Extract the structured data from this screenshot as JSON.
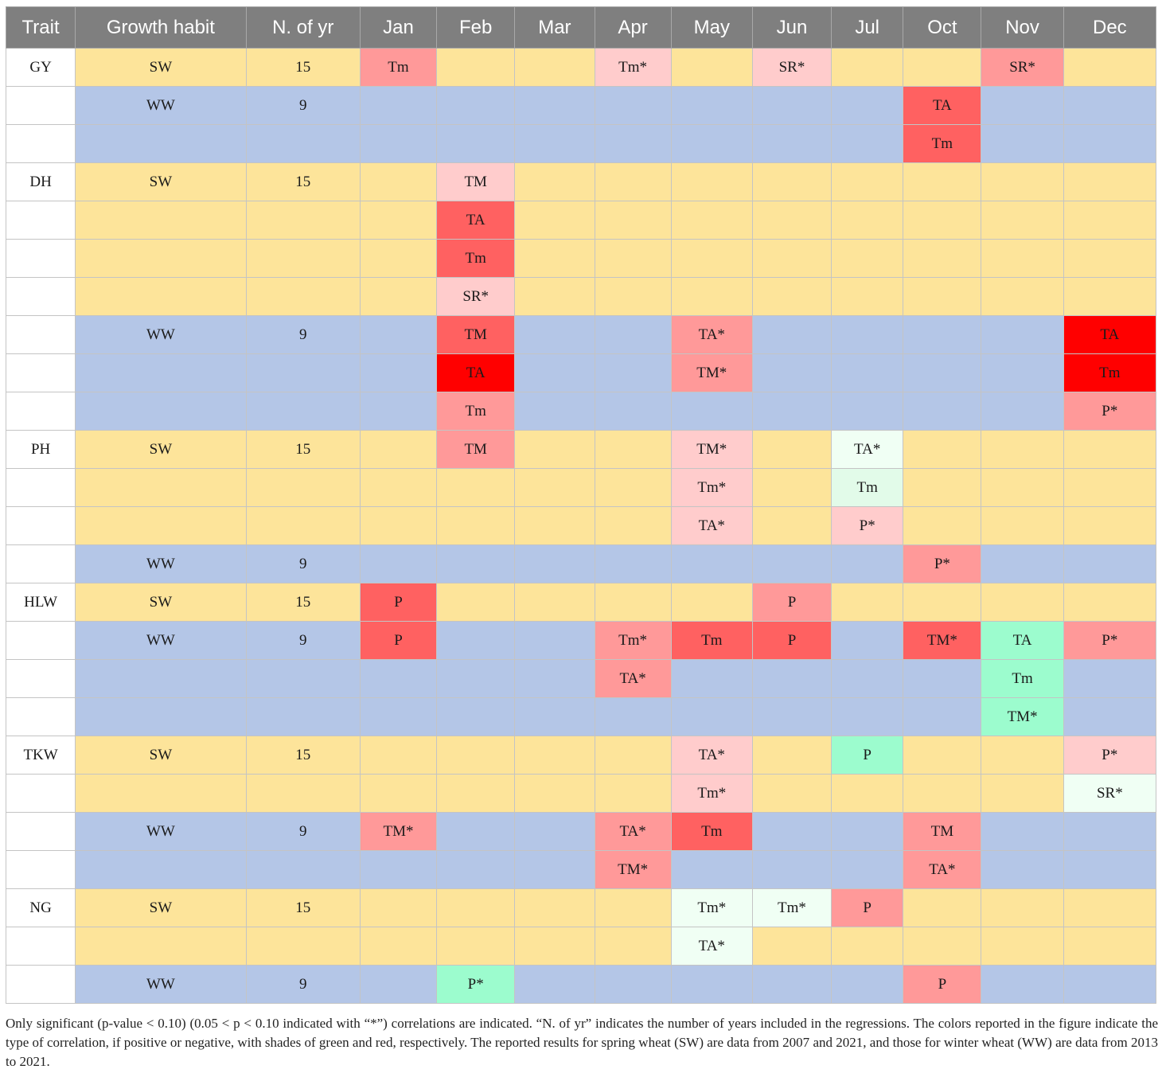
{
  "colors": {
    "header_bg": "#7f7f7f",
    "sw_bg": "#fde49a",
    "ww_bg": "#b4c6e7",
    "red_light": "#ffcccc",
    "red_mid": "#ff9999",
    "red_strong": "#ff6161",
    "red_max": "#ff0000",
    "green_light": "#f0fff4",
    "green_mid": "#e2fbe9",
    "green_strong": "#9cfcce"
  },
  "headers": [
    "Trait",
    "Growth habit",
    "N. of yr",
    "Jan",
    "Feb",
    "Mar",
    "Apr",
    "May",
    "Jun",
    "Jul",
    "Oct",
    "Nov",
    "Dec"
  ],
  "rows": [
    {
      "trait": "GY",
      "habit": "SW",
      "n": "15",
      "cells": [
        [
          "Tm",
          "red_mid"
        ],
        [
          "",
          ""
        ],
        [
          "",
          ""
        ],
        [
          "Tm*",
          "red_light"
        ],
        [
          "",
          ""
        ],
        [
          "SR*",
          "red_light"
        ],
        [
          "",
          ""
        ],
        [
          "",
          ""
        ],
        [
          "SR*",
          "red_mid"
        ],
        [
          "",
          ""
        ]
      ]
    },
    {
      "trait": "",
      "habit": "WW",
      "n": "9",
      "cells": [
        [
          "",
          ""
        ],
        [
          "",
          ""
        ],
        [
          "",
          ""
        ],
        [
          "",
          ""
        ],
        [
          "",
          ""
        ],
        [
          "",
          ""
        ],
        [
          "",
          ""
        ],
        [
          "TA",
          "red_strong"
        ],
        [
          "",
          ""
        ],
        [
          "",
          ""
        ]
      ]
    },
    {
      "trait": "",
      "habit": "",
      "n": "",
      "cells": [
        [
          "",
          ""
        ],
        [
          "",
          ""
        ],
        [
          "",
          ""
        ],
        [
          "",
          ""
        ],
        [
          "",
          ""
        ],
        [
          "",
          ""
        ],
        [
          "",
          ""
        ],
        [
          "Tm",
          "red_strong"
        ],
        [
          "",
          ""
        ],
        [
          "",
          ""
        ]
      ]
    },
    {
      "trait": "DH",
      "habit": "SW",
      "n": "15",
      "cells": [
        [
          "",
          ""
        ],
        [
          "TM",
          "red_light"
        ],
        [
          "",
          ""
        ],
        [
          "",
          ""
        ],
        [
          "",
          ""
        ],
        [
          "",
          ""
        ],
        [
          "",
          ""
        ],
        [
          "",
          ""
        ],
        [
          "",
          ""
        ],
        [
          "",
          ""
        ]
      ]
    },
    {
      "trait": "",
      "habit": "",
      "n": "",
      "cells": [
        [
          "",
          ""
        ],
        [
          "TA",
          "red_strong"
        ],
        [
          "",
          ""
        ],
        [
          "",
          ""
        ],
        [
          "",
          ""
        ],
        [
          "",
          ""
        ],
        [
          "",
          ""
        ],
        [
          "",
          ""
        ],
        [
          "",
          ""
        ],
        [
          "",
          ""
        ]
      ]
    },
    {
      "trait": "",
      "habit": "",
      "n": "",
      "cells": [
        [
          "",
          ""
        ],
        [
          "Tm",
          "red_strong"
        ],
        [
          "",
          ""
        ],
        [
          "",
          ""
        ],
        [
          "",
          ""
        ],
        [
          "",
          ""
        ],
        [
          "",
          ""
        ],
        [
          "",
          ""
        ],
        [
          "",
          ""
        ],
        [
          "",
          ""
        ]
      ]
    },
    {
      "trait": "",
      "habit": "",
      "n": "",
      "cells": [
        [
          "",
          ""
        ],
        [
          "SR*",
          "red_light"
        ],
        [
          "",
          ""
        ],
        [
          "",
          ""
        ],
        [
          "",
          ""
        ],
        [
          "",
          ""
        ],
        [
          "",
          ""
        ],
        [
          "",
          ""
        ],
        [
          "",
          ""
        ],
        [
          "",
          ""
        ]
      ]
    },
    {
      "trait": "",
      "habit": "WW",
      "n": "9",
      "cells": [
        [
          "",
          ""
        ],
        [
          "TM",
          "red_strong"
        ],
        [
          "",
          ""
        ],
        [
          "",
          ""
        ],
        [
          "TA*",
          "red_mid"
        ],
        [
          "",
          ""
        ],
        [
          "",
          ""
        ],
        [
          "",
          ""
        ],
        [
          "",
          ""
        ],
        [
          "TA",
          "red_max"
        ]
      ]
    },
    {
      "trait": "",
      "habit": "",
      "n": "",
      "cells": [
        [
          "",
          ""
        ],
        [
          "TA",
          "red_max"
        ],
        [
          "",
          ""
        ],
        [
          "",
          ""
        ],
        [
          "TM*",
          "red_mid"
        ],
        [
          "",
          ""
        ],
        [
          "",
          ""
        ],
        [
          "",
          ""
        ],
        [
          "",
          ""
        ],
        [
          "Tm",
          "red_max"
        ]
      ]
    },
    {
      "trait": "",
      "habit": "",
      "n": "",
      "cells": [
        [
          "",
          ""
        ],
        [
          "Tm",
          "red_mid"
        ],
        [
          "",
          ""
        ],
        [
          "",
          ""
        ],
        [
          "",
          ""
        ],
        [
          "",
          ""
        ],
        [
          "",
          ""
        ],
        [
          "",
          ""
        ],
        [
          "",
          ""
        ],
        [
          "P*",
          "red_mid"
        ]
      ]
    },
    {
      "trait": "PH",
      "habit": "SW",
      "n": "15",
      "cells": [
        [
          "",
          ""
        ],
        [
          "TM",
          "red_mid"
        ],
        [
          "",
          ""
        ],
        [
          "",
          ""
        ],
        [
          "TM*",
          "red_light"
        ],
        [
          "",
          ""
        ],
        [
          "TA*",
          "green_light"
        ],
        [
          "",
          ""
        ],
        [
          "",
          ""
        ],
        [
          "",
          ""
        ]
      ]
    },
    {
      "trait": "",
      "habit": "",
      "n": "",
      "cells": [
        [
          "",
          ""
        ],
        [
          "",
          ""
        ],
        [
          "",
          ""
        ],
        [
          "",
          ""
        ],
        [
          "Tm*",
          "red_light"
        ],
        [
          "",
          ""
        ],
        [
          "Tm",
          "green_mid"
        ],
        [
          "",
          ""
        ],
        [
          "",
          ""
        ],
        [
          "",
          ""
        ]
      ]
    },
    {
      "trait": "",
      "habit": "",
      "n": "",
      "cells": [
        [
          "",
          ""
        ],
        [
          "",
          ""
        ],
        [
          "",
          ""
        ],
        [
          "",
          ""
        ],
        [
          "TA*",
          "red_light"
        ],
        [
          "",
          ""
        ],
        [
          "P*",
          "red_light"
        ],
        [
          "",
          ""
        ],
        [
          "",
          ""
        ],
        [
          "",
          ""
        ]
      ]
    },
    {
      "trait": "",
      "habit": "WW",
      "n": "9",
      "cells": [
        [
          "",
          ""
        ],
        [
          "",
          ""
        ],
        [
          "",
          ""
        ],
        [
          "",
          ""
        ],
        [
          "",
          ""
        ],
        [
          "",
          ""
        ],
        [
          "",
          ""
        ],
        [
          "P*",
          "red_mid"
        ],
        [
          "",
          ""
        ],
        [
          "",
          ""
        ]
      ]
    },
    {
      "trait": "HLW",
      "habit": "SW",
      "n": "15",
      "cells": [
        [
          "P",
          "red_strong"
        ],
        [
          "",
          ""
        ],
        [
          "",
          ""
        ],
        [
          "",
          ""
        ],
        [
          "",
          ""
        ],
        [
          "P",
          "red_mid"
        ],
        [
          "",
          ""
        ],
        [
          "",
          ""
        ],
        [
          "",
          ""
        ],
        [
          "",
          ""
        ]
      ]
    },
    {
      "trait": "",
      "habit": "WW",
      "n": "9",
      "cells": [
        [
          "P",
          "red_strong"
        ],
        [
          "",
          ""
        ],
        [
          "",
          ""
        ],
        [
          "Tm*",
          "red_mid"
        ],
        [
          "Tm",
          "red_strong"
        ],
        [
          "P",
          "red_strong"
        ],
        [
          "",
          ""
        ],
        [
          "TM*",
          "red_strong"
        ],
        [
          "TA",
          "green_strong"
        ],
        [
          "P*",
          "red_mid"
        ]
      ]
    },
    {
      "trait": "",
      "habit": "",
      "n": "",
      "cells": [
        [
          "",
          ""
        ],
        [
          "",
          ""
        ],
        [
          "",
          ""
        ],
        [
          "TA*",
          "red_mid"
        ],
        [
          "",
          ""
        ],
        [
          "",
          ""
        ],
        [
          "",
          ""
        ],
        [
          "",
          ""
        ],
        [
          "Tm",
          "green_strong"
        ],
        [
          "",
          ""
        ]
      ]
    },
    {
      "trait": "",
      "habit": "",
      "n": "",
      "cells": [
        [
          "",
          ""
        ],
        [
          "",
          ""
        ],
        [
          "",
          ""
        ],
        [
          "",
          ""
        ],
        [
          "",
          ""
        ],
        [
          "",
          ""
        ],
        [
          "",
          ""
        ],
        [
          "",
          ""
        ],
        [
          "TM*",
          "green_strong"
        ],
        [
          "",
          ""
        ]
      ]
    },
    {
      "trait": "TKW",
      "habit": "SW",
      "n": "15",
      "cells": [
        [
          "",
          ""
        ],
        [
          "",
          ""
        ],
        [
          "",
          ""
        ],
        [
          "",
          ""
        ],
        [
          "TA*",
          "red_light"
        ],
        [
          "",
          ""
        ],
        [
          "P",
          "green_strong"
        ],
        [
          "",
          ""
        ],
        [
          "",
          ""
        ],
        [
          "P*",
          "red_light"
        ]
      ]
    },
    {
      "trait": "",
      "habit": "",
      "n": "",
      "cells": [
        [
          "",
          ""
        ],
        [
          "",
          ""
        ],
        [
          "",
          ""
        ],
        [
          "",
          ""
        ],
        [
          "Tm*",
          "red_light"
        ],
        [
          "",
          ""
        ],
        [
          "",
          ""
        ],
        [
          "",
          ""
        ],
        [
          "",
          ""
        ],
        [
          "SR*",
          "green_light"
        ]
      ]
    },
    {
      "trait": "",
      "habit": "WW",
      "n": "9",
      "cells": [
        [
          "TM*",
          "red_mid"
        ],
        [
          "",
          ""
        ],
        [
          "",
          ""
        ],
        [
          "TA*",
          "red_mid"
        ],
        [
          "Tm",
          "red_strong"
        ],
        [
          "",
          ""
        ],
        [
          "",
          ""
        ],
        [
          "TM",
          "red_mid"
        ],
        [
          "",
          ""
        ],
        [
          "",
          ""
        ]
      ]
    },
    {
      "trait": "",
      "habit": "",
      "n": "",
      "cells": [
        [
          "",
          ""
        ],
        [
          "",
          ""
        ],
        [
          "",
          ""
        ],
        [
          "TM*",
          "red_mid"
        ],
        [
          "",
          ""
        ],
        [
          "",
          ""
        ],
        [
          "",
          ""
        ],
        [
          "TA*",
          "red_mid"
        ],
        [
          "",
          ""
        ],
        [
          "",
          ""
        ]
      ]
    },
    {
      "trait": "NG",
      "habit": "SW",
      "n": "15",
      "cells": [
        [
          "",
          ""
        ],
        [
          "",
          ""
        ],
        [
          "",
          ""
        ],
        [
          "",
          ""
        ],
        [
          "Tm*",
          "green_light"
        ],
        [
          "Tm*",
          "green_light"
        ],
        [
          "P",
          "red_mid"
        ],
        [
          "",
          ""
        ],
        [
          "",
          ""
        ],
        [
          "",
          ""
        ]
      ]
    },
    {
      "trait": "",
      "habit": "",
      "n": "",
      "cells": [
        [
          "",
          ""
        ],
        [
          "",
          ""
        ],
        [
          "",
          ""
        ],
        [
          "",
          ""
        ],
        [
          "TA*",
          "green_light"
        ],
        [
          "",
          ""
        ],
        [
          "",
          ""
        ],
        [
          "",
          ""
        ],
        [
          "",
          ""
        ],
        [
          "",
          ""
        ]
      ]
    },
    {
      "trait": "",
      "habit": "WW",
      "n": "9",
      "cells": [
        [
          "",
          ""
        ],
        [
          "P*",
          "green_strong"
        ],
        [
          "",
          ""
        ],
        [
          "",
          ""
        ],
        [
          "",
          ""
        ],
        [
          "",
          ""
        ],
        [
          "",
          ""
        ],
        [
          "P",
          "red_mid"
        ],
        [
          "",
          ""
        ],
        [
          "",
          ""
        ]
      ]
    }
  ],
  "row_groups": [
    "sw",
    "ww",
    "ww",
    "sw",
    "sw",
    "sw",
    "sw",
    "ww",
    "ww",
    "ww",
    "sw",
    "sw",
    "sw",
    "ww",
    "sw",
    "ww",
    "ww",
    "ww",
    "sw",
    "sw",
    "ww",
    "ww",
    "sw",
    "sw",
    "ww"
  ],
  "footnote": "Only significant (p-value < 0.10) (0.05 < p < 0.10 indicated with “*”) correlations are indicated. “N. of yr” indicates the number of years included in the regressions. The colors reported in the figure indicate the type of correlation, if positive or negative, with shades of green and red, respectively. The reported results for spring wheat (SW) are data from 2007 and 2021, and those for winter wheat (WW) are data from 2013 to 2021."
}
